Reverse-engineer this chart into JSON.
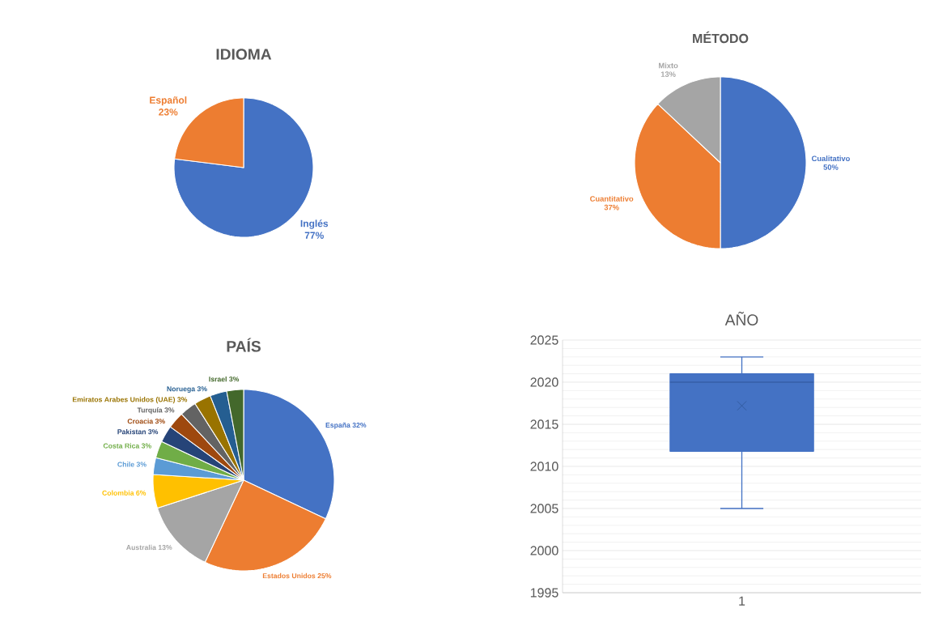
{
  "chart_data": [
    {
      "type": "pie",
      "title": "IDIOMA",
      "categories": [
        "Inglés",
        "Español"
      ],
      "values": [
        77,
        23
      ],
      "colors": [
        "#4472c4",
        "#ed7d31"
      ],
      "value_labels": [
        "77%",
        "23%"
      ]
    },
    {
      "type": "pie",
      "title": "MÉTODO",
      "categories": [
        "Cualitativo",
        "Cuantitativo",
        "Mixto"
      ],
      "values": [
        50,
        37,
        13
      ],
      "colors": [
        "#4472c4",
        "#ed7d31",
        "#a5a5a5"
      ],
      "value_labels": [
        "50%",
        "37%",
        "13%"
      ]
    },
    {
      "type": "pie",
      "title": "PAÍS",
      "categories": [
        "España",
        "Estados  Unidos",
        "Australia",
        "Colombia",
        "Chile",
        "Costa  Rica",
        "Pakistan",
        "Croacia",
        "Turquía",
        "Emiratos  Arabes  Unidos  (UAE)",
        "Noruega",
        "Israel"
      ],
      "values": [
        32,
        25,
        13,
        6,
        3,
        3,
        3,
        3,
        3,
        3,
        3,
        3
      ],
      "colors": [
        "#4472c4",
        "#ed7d31",
        "#a5a5a5",
        "#ffc000",
        "#5b9bd5",
        "#70ad47",
        "#264478",
        "#9e480e",
        "#636363",
        "#997300",
        "#255e91",
        "#43682b"
      ],
      "value_labels": [
        "32%",
        "25%",
        "13%",
        "6%",
        "3%",
        "3%",
        "3%",
        "3%",
        "3%",
        "3%",
        "3%",
        "3%"
      ]
    },
    {
      "type": "box",
      "title": "AÑO",
      "categories": [
        "1"
      ],
      "color": "#4472c4",
      "boxes": [
        {
          "low": 2005,
          "q1": 2011.8,
          "median": 2020,
          "q3": 2021,
          "high": 2023,
          "mean": 2017.2
        }
      ],
      "ylim": [
        1995,
        2025
      ],
      "yticks": [
        1995,
        2000,
        2005,
        2010,
        2015,
        2020,
        2025
      ],
      "grid": "y"
    }
  ]
}
